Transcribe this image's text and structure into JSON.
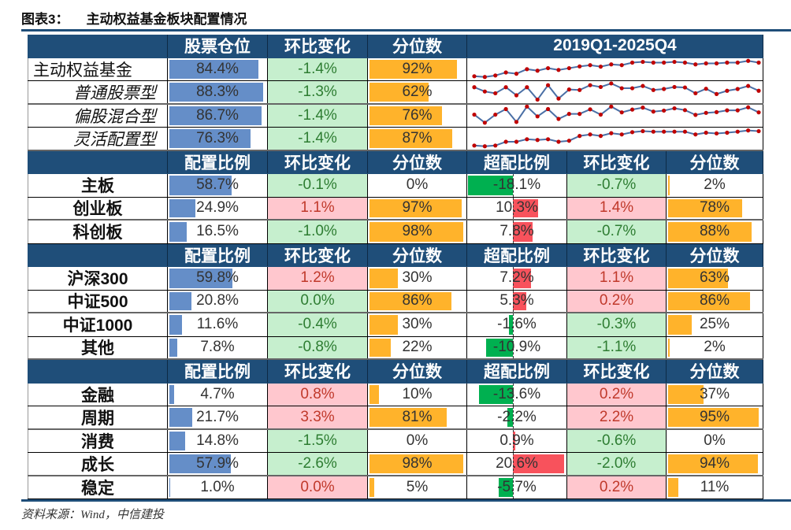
{
  "title": {
    "figure_no": "图表3：",
    "text": "主动权益基金板块配置情况"
  },
  "colors": {
    "header": "#1F4E79",
    "position_bar": "#658EC8",
    "percentile_bar": "#FFB32B",
    "down_bg": "#C6EFCE",
    "up_bg": "#FFC7CE",
    "under_bar": "#00B050",
    "over_bar": "#F8525C",
    "spark_line": "#4A6FA5",
    "spark_dot": "#C00000"
  },
  "fund_section": {
    "headers": [
      "",
      "股票仓位",
      "环比变化",
      "分位数",
      "2019Q1-2025Q4"
    ],
    "rows": [
      {
        "label": "主动权益基金",
        "position": "84.4%",
        "position_value": 84.4,
        "change": "-1.4%",
        "trend": "down",
        "percentile": "92%",
        "percentile_value": 92,
        "spark": [
          10,
          7,
          13,
          25,
          20,
          38,
          32,
          42,
          35,
          42,
          49,
          54,
          48,
          57,
          54,
          64,
          67,
          64,
          64,
          67,
          64,
          57,
          61,
          61,
          64,
          64,
          71,
          64
        ]
      },
      {
        "label": "普通股票型",
        "position": "88.3%",
        "position_value": 88.3,
        "change": "-1.3%",
        "trend": "down",
        "percentile": "62%",
        "percentile_value": 62,
        "spark": [
          57,
          40,
          33,
          57,
          25,
          57,
          8,
          65,
          12,
          48,
          46,
          65,
          58,
          72,
          53,
          53,
          62,
          46,
          50,
          58,
          56,
          33,
          51,
          30,
          43,
          50,
          62,
          43
        ]
      },
      {
        "label": "偏股混合型",
        "position": "86.7%",
        "position_value": 86.7,
        "change": "-1.4%",
        "trend": "down",
        "percentile": "76%",
        "percentile_value": 76,
        "spark": [
          42,
          10,
          42,
          64,
          13,
          74,
          35,
          64,
          25,
          45,
          45,
          63,
          42,
          74,
          51,
          62,
          70,
          54,
          58,
          67,
          60,
          41,
          49,
          52,
          59,
          59,
          71,
          51
        ]
      },
      {
        "label": "灵活配置型",
        "position": "76.3%",
        "position_value": 76.3,
        "change": "-1.4%",
        "trend": "down",
        "percentile": "87%",
        "percentile_value": 87,
        "spark": [
          10,
          7,
          10,
          25,
          25,
          35,
          32,
          35,
          25,
          29,
          48,
          54,
          48,
          59,
          54,
          63,
          67,
          65,
          65,
          65,
          65,
          54,
          61,
          58,
          61,
          65,
          70,
          67
        ]
      }
    ]
  },
  "sections": [
    {
      "headers": [
        "",
        "配置比例",
        "环比变化",
        "分位数",
        "超配比例",
        "环比变化",
        "分位数"
      ],
      "rows": [
        {
          "label": "主板",
          "alloc": "58.7%",
          "alloc_value": 58.7,
          "change": "-0.1%",
          "trend": "down",
          "pct": "0%",
          "pct_value": 0,
          "over": "-18.1%",
          "over_value": -18.1,
          "over_change": "-0.7%",
          "over_trend": "down",
          "over_pct": "2%",
          "over_pct_value": 2
        },
        {
          "label": "创业板",
          "alloc": "24.9%",
          "alloc_value": 24.9,
          "change": "1.1%",
          "trend": "up",
          "pct": "97%",
          "pct_value": 97,
          "over": "10.3%",
          "over_value": 10.3,
          "over_change": "1.4%",
          "over_trend": "up",
          "over_pct": "78%",
          "over_pct_value": 78
        },
        {
          "label": "科创板",
          "alloc": "16.5%",
          "alloc_value": 16.5,
          "change": "-1.0%",
          "trend": "down",
          "pct": "98%",
          "pct_value": 98,
          "over": "7.8%",
          "over_value": 7.8,
          "over_change": "-0.7%",
          "over_trend": "down",
          "over_pct": "88%",
          "over_pct_value": 88
        }
      ]
    },
    {
      "headers": [
        "",
        "配置比例",
        "环比变化",
        "分位数",
        "超配比例",
        "环比变化",
        "分位数"
      ],
      "rows": [
        {
          "label": "沪深300",
          "alloc": "59.8%",
          "alloc_value": 59.8,
          "change": "1.2%",
          "trend": "up",
          "pct": "30%",
          "pct_value": 30,
          "over": "7.2%",
          "over_value": 7.2,
          "over_change": "1.1%",
          "over_trend": "up",
          "over_pct": "63%",
          "over_pct_value": 63
        },
        {
          "label": "中证500",
          "alloc": "20.8%",
          "alloc_value": 20.8,
          "change": "0.0%",
          "trend": "down",
          "pct": "86%",
          "pct_value": 86,
          "over": "5.3%",
          "over_value": 5.3,
          "over_change": "0.2%",
          "over_trend": "up",
          "over_pct": "86%",
          "over_pct_value": 86
        },
        {
          "label": "中证1000",
          "alloc": "11.6%",
          "alloc_value": 11.6,
          "change": "-0.4%",
          "trend": "down",
          "pct": "30%",
          "pct_value": 30,
          "over": "-1.6%",
          "over_value": -1.6,
          "over_change": "-0.3%",
          "over_trend": "down",
          "over_pct": "25%",
          "over_pct_value": 25
        },
        {
          "label": "其他",
          "alloc": "7.8%",
          "alloc_value": 7.8,
          "change": "-0.8%",
          "trend": "down",
          "pct": "22%",
          "pct_value": 22,
          "over": "-10.9%",
          "over_value": -10.9,
          "over_change": "-1.1%",
          "over_trend": "down",
          "over_pct": "2%",
          "over_pct_value": 2
        }
      ]
    },
    {
      "headers": [
        "",
        "配置比例",
        "环比变化",
        "分位数",
        "超配比例",
        "环比变化",
        "分位数"
      ],
      "rows": [
        {
          "label": "金融",
          "alloc": "4.7%",
          "alloc_value": 4.7,
          "change": "0.8%",
          "trend": "up",
          "pct": "10%",
          "pct_value": 10,
          "over": "-13.6%",
          "over_value": -13.6,
          "over_change": "0.2%",
          "over_trend": "up",
          "over_pct": "37%",
          "over_pct_value": 37
        },
        {
          "label": "周期",
          "alloc": "21.7%",
          "alloc_value": 21.7,
          "change": "3.3%",
          "trend": "up",
          "pct": "81%",
          "pct_value": 81,
          "over": "-2.2%",
          "over_value": -2.2,
          "over_change": "2.2%",
          "over_trend": "up",
          "over_pct": "95%",
          "over_pct_value": 95
        },
        {
          "label": "消费",
          "alloc": "14.8%",
          "alloc_value": 14.8,
          "change": "-1.5%",
          "trend": "down",
          "pct": "0%",
          "pct_value": 0,
          "over": "0.9%",
          "over_value": 0.9,
          "over_change": "-0.6%",
          "over_trend": "down",
          "over_pct": "0%",
          "over_pct_value": 0
        },
        {
          "label": "成长",
          "alloc": "57.9%",
          "alloc_value": 57.9,
          "change": "-2.6%",
          "trend": "down",
          "pct": "98%",
          "pct_value": 98,
          "over": "20.6%",
          "over_value": 20.6,
          "over_change": "-2.0%",
          "over_trend": "down",
          "over_pct": "94%",
          "over_pct_value": 94
        },
        {
          "label": "稳定",
          "alloc": "1.0%",
          "alloc_value": 1.0,
          "change": "0.0%",
          "trend": "up",
          "pct": "5%",
          "pct_value": 5,
          "over": "-5.7%",
          "over_value": -5.7,
          "over_change": "0.2%",
          "over_trend": "up",
          "over_pct": "11%",
          "over_pct_value": 11
        }
      ]
    }
  ],
  "source": "资料来源：Wind，中信建投"
}
